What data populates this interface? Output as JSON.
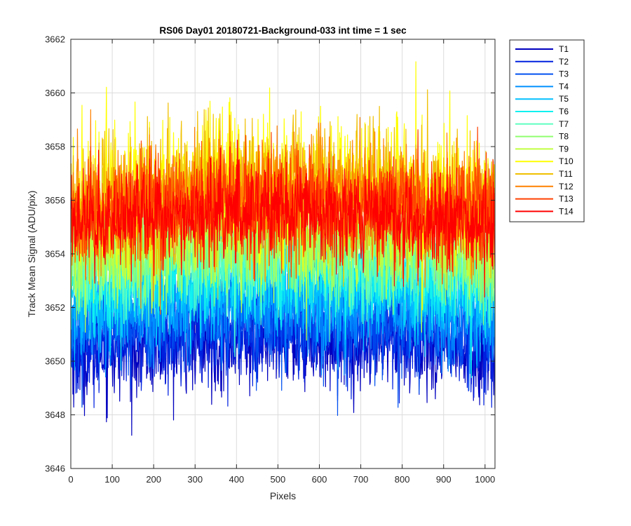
{
  "chart_data": {
    "type": "line",
    "title": "RS06 Day01 20180721-Background-033 int time = 1 sec",
    "xlabel": "Pixels",
    "ylabel": "Track Mean Signal (ADU/pix)",
    "xlim": [
      0,
      1024
    ],
    "ylim": [
      3646,
      3662
    ],
    "xticks": [
      0,
      100,
      200,
      300,
      400,
      500,
      600,
      700,
      800,
      900,
      1000
    ],
    "yticks": [
      3646,
      3648,
      3650,
      3652,
      3654,
      3656,
      3658,
      3660,
      3662
    ],
    "grid": true,
    "legend_position": "outside-top-right",
    "x": {
      "start": 1,
      "end": 1024,
      "step": 1
    },
    "series": [
      {
        "name": "T1",
        "color": "#0000BF",
        "mean": 3650.6,
        "noise": 0.95
      },
      {
        "name": "T2",
        "color": "#0020DF",
        "mean": 3651.0,
        "noise": 0.95
      },
      {
        "name": "T3",
        "color": "#0050F0",
        "mean": 3651.5,
        "noise": 0.95
      },
      {
        "name": "T4",
        "color": "#0090FF",
        "mean": 3652.0,
        "noise": 0.95
      },
      {
        "name": "T5",
        "color": "#00C0FF",
        "mean": 3652.6,
        "noise": 0.95
      },
      {
        "name": "T6",
        "color": "#10F0F0",
        "mean": 3653.1,
        "noise": 0.95
      },
      {
        "name": "T7",
        "color": "#60FFC0",
        "mean": 3653.6,
        "noise": 0.95
      },
      {
        "name": "T8",
        "color": "#90FF70",
        "mean": 3654.1,
        "noise": 0.95
      },
      {
        "name": "T9",
        "color": "#C0FF40",
        "mean": 3654.6,
        "noise": 1.0
      },
      {
        "name": "T10",
        "color": "#FFFF00",
        "mean": 3656.3,
        "noise": 1.3
      },
      {
        "name": "T11",
        "color": "#F0C000",
        "mean": 3656.1,
        "noise": 1.2
      },
      {
        "name": "T12",
        "color": "#FF8000",
        "mean": 3655.9,
        "noise": 1.1
      },
      {
        "name": "T13",
        "color": "#FF4000",
        "mean": 3655.6,
        "noise": 1.0
      },
      {
        "name": "T14",
        "color": "#FF0000",
        "mean": 3655.3,
        "noise": 0.9
      }
    ]
  }
}
